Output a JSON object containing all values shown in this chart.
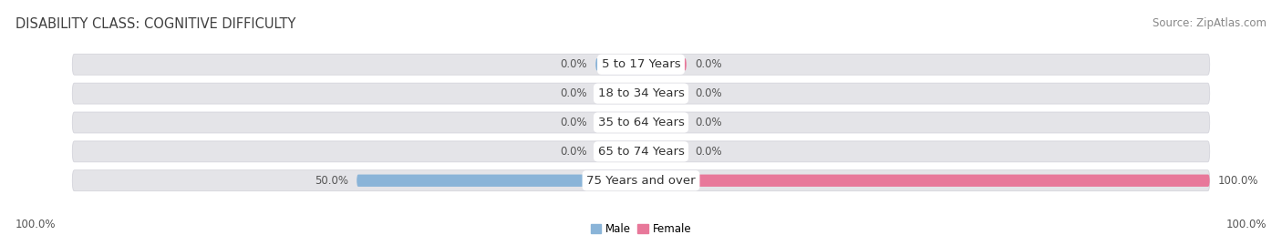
{
  "title": "DISABILITY CLASS: COGNITIVE DIFFICULTY",
  "source": "Source: ZipAtlas.com",
  "categories": [
    "5 to 17 Years",
    "18 to 34 Years",
    "35 to 64 Years",
    "65 to 74 Years",
    "75 Years and over"
  ],
  "male_values": [
    0.0,
    0.0,
    0.0,
    0.0,
    50.0
  ],
  "female_values": [
    0.0,
    0.0,
    0.0,
    0.0,
    100.0
  ],
  "male_color": "#8ab4d8",
  "female_color": "#e8789a",
  "bar_bg_color": "#e4e4e8",
  "bar_bg_border": "#d0d0d8",
  "title_fontsize": 10.5,
  "source_fontsize": 8.5,
  "label_fontsize": 8.5,
  "category_fontsize": 9.5,
  "legend_male": "Male",
  "legend_female": "Female",
  "figsize": [
    14.06,
    2.69
  ],
  "dpi": 100,
  "background_color": "#ffffff",
  "stub_size": 8.0,
  "bar_gap": 0.15
}
